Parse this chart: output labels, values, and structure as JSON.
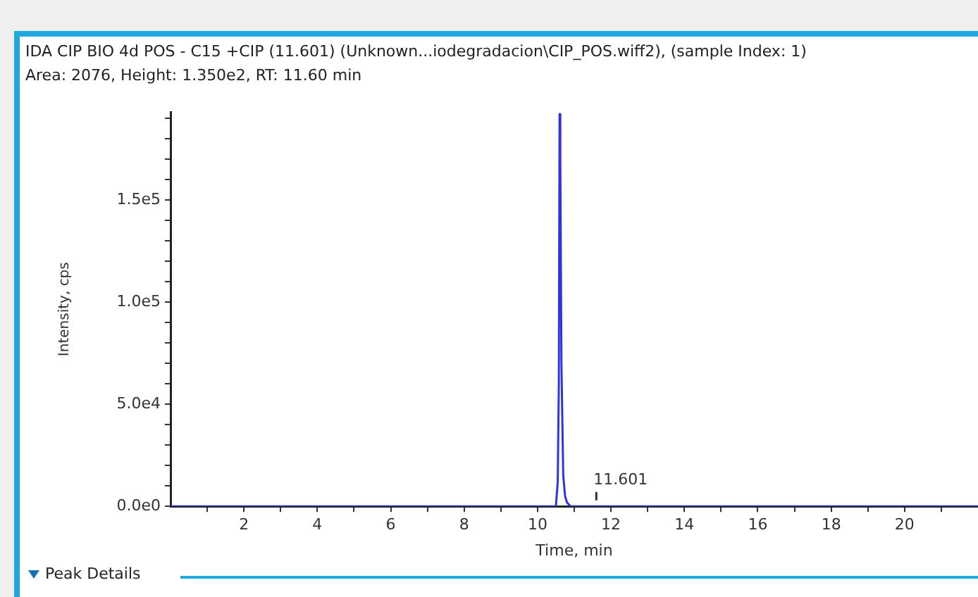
{
  "chart_data": {
    "type": "line",
    "title": "IDA CIP BIO 4d POS - C15 +CIP (11.601) (Unknown...iodegradacion\\CIP_POS.wiff2), (sample Index: 1)",
    "subtitle": "Area: 2076, Height: 1.350e2, RT: 11.60 min",
    "xlabel": "Time, min",
    "ylabel": "Intensity, cps",
    "series": [
      {
        "color": "#3333dd",
        "x": [
          0,
          10.5,
          10.55,
          10.58,
          10.6,
          10.62,
          10.65,
          10.7,
          10.75,
          10.8,
          10.9,
          22
        ],
        "values": [
          0,
          0,
          12000,
          60000,
          192000,
          170000,
          71000,
          15000,
          5000,
          2000,
          0,
          0
        ]
      }
    ],
    "annotations": [
      {
        "text": "11.601",
        "x": 11.601,
        "y": 135
      },
      "Peak Details"
    ],
    "xlim": [
      0,
      22
    ],
    "xticks": [
      {
        "value": 1,
        "label": null
      },
      2,
      {
        "value": 3,
        "label": null
      },
      4,
      {
        "value": 5,
        "label": null
      },
      6,
      {
        "value": 7,
        "label": null
      },
      8,
      {
        "value": 9,
        "label": null
      },
      10,
      {
        "value": 11,
        "label": null
      },
      12,
      {
        "value": 13,
        "label": null
      },
      14,
      {
        "value": 15,
        "label": null
      },
      16,
      {
        "value": 17,
        "label": null
      },
      18,
      {
        "value": 19,
        "label": null
      },
      20,
      {
        "value": 21,
        "label": null
      }
    ],
    "ylim": [
      0,
      193000
    ],
    "yticks": [
      {
        "value": 0,
        "label": "0.0e0"
      },
      {
        "value": 10000,
        "label": null
      },
      {
        "value": 20000,
        "label": null
      },
      {
        "value": 30000,
        "label": null
      },
      {
        "value": 40000,
        "label": null
      },
      {
        "value": 50000,
        "label": "5.0e4"
      },
      {
        "value": 60000,
        "label": null
      },
      {
        "value": 70000,
        "label": null
      },
      {
        "value": 80000,
        "label": null
      },
      {
        "value": 90000,
        "label": null
      },
      {
        "value": 100000,
        "label": "1.0e5"
      },
      {
        "value": 110000,
        "label": null
      },
      {
        "value": 120000,
        "label": null
      },
      {
        "value": 130000,
        "label": null
      },
      {
        "value": 140000,
        "label": null
      },
      {
        "value": 150000,
        "label": "1.5e5"
      },
      {
        "value": 160000,
        "label": null
      },
      {
        "value": 170000,
        "label": null
      },
      {
        "value": 180000,
        "label": null
      },
      {
        "value": 190000,
        "label": null
      }
    ],
    "grid": false,
    "legend": false,
    "marker": "none",
    "line_style": "solid"
  }
}
